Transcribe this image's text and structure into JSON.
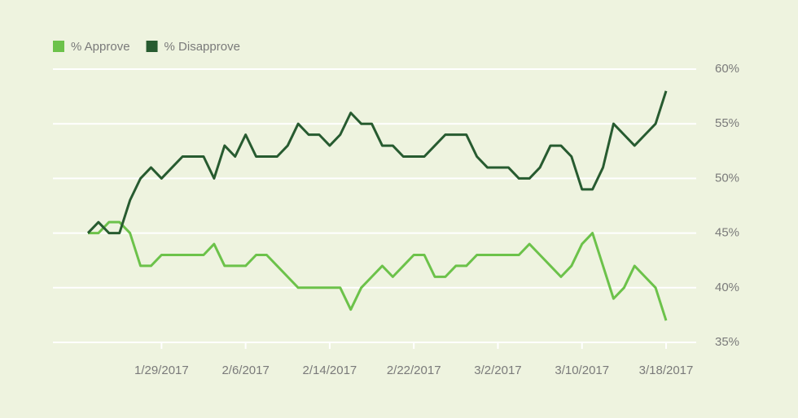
{
  "chart_data": {
    "type": "line",
    "x": [
      "2017-01-22",
      "2017-01-23",
      "2017-01-24",
      "2017-01-25",
      "2017-01-26",
      "2017-01-27",
      "2017-01-28",
      "2017-01-29",
      "2017-01-30",
      "2017-01-31",
      "2017-02-01",
      "2017-02-02",
      "2017-02-03",
      "2017-02-04",
      "2017-02-05",
      "2017-02-06",
      "2017-02-07",
      "2017-02-08",
      "2017-02-09",
      "2017-02-10",
      "2017-02-11",
      "2017-02-12",
      "2017-02-13",
      "2017-02-14",
      "2017-02-15",
      "2017-02-16",
      "2017-02-17",
      "2017-02-18",
      "2017-02-19",
      "2017-02-20",
      "2017-02-21",
      "2017-02-22",
      "2017-02-23",
      "2017-02-24",
      "2017-02-25",
      "2017-02-26",
      "2017-02-27",
      "2017-02-28",
      "2017-03-01",
      "2017-03-02",
      "2017-03-03",
      "2017-03-04",
      "2017-03-05",
      "2017-03-06",
      "2017-03-07",
      "2017-03-08",
      "2017-03-09",
      "2017-03-10",
      "2017-03-11",
      "2017-03-12",
      "2017-03-13",
      "2017-03-14",
      "2017-03-15",
      "2017-03-16",
      "2017-03-17",
      "2017-03-18"
    ],
    "series": [
      {
        "name": "% Approve",
        "color": "#6cc24a",
        "values": [
          45,
          45,
          46,
          46,
          45,
          42,
          42,
          43,
          43,
          43,
          43,
          43,
          44,
          42,
          42,
          42,
          43,
          43,
          42,
          41,
          40,
          40,
          40,
          40,
          40,
          38,
          40,
          41,
          42,
          41,
          42,
          43,
          43,
          41,
          41,
          42,
          42,
          43,
          43,
          43,
          43,
          43,
          44,
          43,
          42,
          41,
          42,
          44,
          45,
          42,
          39,
          40,
          42,
          41,
          40,
          37
        ]
      },
      {
        "name": "% Disapprove",
        "color": "#275b30",
        "values": [
          45,
          46,
          45,
          45,
          48,
          50,
          51,
          50,
          51,
          52,
          52,
          52,
          50,
          53,
          52,
          54,
          52,
          52,
          52,
          53,
          55,
          54,
          54,
          53,
          54,
          56,
          55,
          55,
          53,
          53,
          52,
          52,
          52,
          53,
          54,
          54,
          54,
          52,
          51,
          51,
          51,
          50,
          50,
          51,
          53,
          53,
          52,
          49,
          49,
          51,
          55,
          54,
          53,
          54,
          55,
          58
        ]
      }
    ],
    "ylim": [
      35,
      60
    ],
    "yticks": [
      {
        "value": 35,
        "label": "35%"
      },
      {
        "value": 40,
        "label": "40%"
      },
      {
        "value": 45,
        "label": "45%"
      },
      {
        "value": 50,
        "label": "50%"
      },
      {
        "value": 55,
        "label": "55%"
      },
      {
        "value": 60,
        "label": "60%"
      }
    ],
    "xticks": [
      {
        "value": "2017-01-29",
        "label": "1/29/2017"
      },
      {
        "value": "2017-02-06",
        "label": "2/6/2017"
      },
      {
        "value": "2017-02-14",
        "label": "2/14/2017"
      },
      {
        "value": "2017-02-22",
        "label": "2/22/2017"
      },
      {
        "value": "2017-03-02",
        "label": "3/2/2017"
      },
      {
        "value": "2017-03-10",
        "label": "3/10/2017"
      },
      {
        "value": "2017-03-18",
        "label": "3/18/2017"
      }
    ],
    "grid": true
  }
}
